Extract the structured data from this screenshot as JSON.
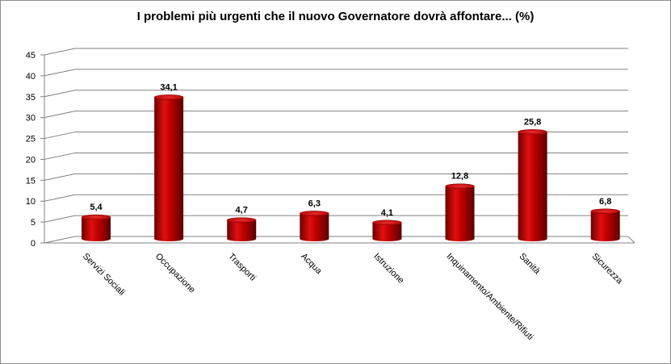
{
  "chart_data": {
    "type": "bar",
    "title": "I problemi più urgenti che il nuovo Governatore dovrà affontare... (%)",
    "xlabel": "",
    "ylabel": "",
    "categories": [
      "Servizi Sociali",
      "Occupazione",
      "Trasporti",
      "Acqua",
      "Istruzione",
      "Inquinamento/Ambiente/Rifiuti",
      "Sanità",
      "Sicurezza"
    ],
    "values": [
      5.4,
      34.1,
      4.7,
      6.3,
      4.1,
      12.8,
      25.8,
      6.8
    ],
    "value_labels": [
      "5,4",
      "34,1",
      "4,7",
      "6,3",
      "4,1",
      "12,8",
      "25,8",
      "6,8"
    ],
    "ylim": [
      0,
      45
    ],
    "yticks": [
      0,
      5,
      10,
      15,
      20,
      25,
      30,
      35,
      40,
      45
    ],
    "grid": true,
    "legend": "none",
    "bar_color": "#c00000",
    "style": "3d-cylinder"
  }
}
